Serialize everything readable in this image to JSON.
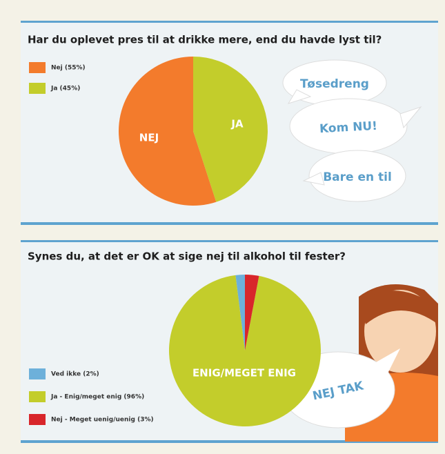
{
  "chart_data": [
    {
      "type": "pie",
      "title": "Har du oplevet pres til at drikke mere, end du havde lyst til?",
      "categories": [
        "Nej (55%)",
        "Ja (45%)"
      ],
      "slice_labels": [
        "NEJ",
        "JA"
      ],
      "values": [
        55,
        45
      ],
      "colors": [
        "#f37b2c",
        "#c3cd2b"
      ],
      "annotations": [
        "Tøsedreng",
        "Kom NU!",
        "Bare en til"
      ]
    },
    {
      "type": "pie",
      "title": "Synes du, at det er OK at sige nej til alkohol til fester?",
      "categories": [
        "Ved ikke (2%)",
        "Ja - Enig/meget enig (96%)",
        "Nej - Meget uenig/uenig (3%)"
      ],
      "slice_labels": [
        null,
        "ENIG/MEGET ENIG",
        null
      ],
      "values": [
        2,
        96,
        3
      ],
      "colors": [
        "#6db0da",
        "#c3cd2b",
        "#d8262b"
      ],
      "annotations": [
        "NEJ TAK"
      ]
    }
  ]
}
